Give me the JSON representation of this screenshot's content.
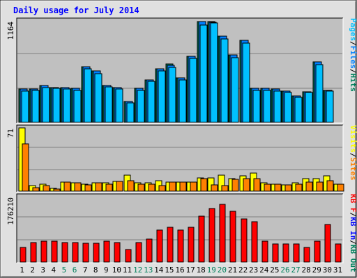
{
  "title": "Daily usage for July 2014",
  "colors": {
    "background": "#e0e0e0",
    "plot_background": "#c0c0c0",
    "grid": "#808080",
    "title": "#0000ff",
    "pages": "#00c0ff",
    "files": "#0080ff",
    "hits": "#00805c",
    "visits": "#ffff00",
    "sites": "#ff8000",
    "kb_f": "#ff0000",
    "kb_in": "#0000ff",
    "kb_out": "#00805c"
  },
  "chart_data": {
    "type": "bar",
    "title": "Daily usage for July 2014",
    "categories": [
      "1",
      "2",
      "3",
      "4",
      "5",
      "6",
      "7",
      "8",
      "9",
      "10",
      "11",
      "12",
      "13",
      "14",
      "15",
      "16",
      "17",
      "18",
      "19",
      "20",
      "21",
      "22",
      "23",
      "24",
      "25",
      "26",
      "27",
      "28",
      "29",
      "30",
      "31"
    ],
    "weekend_days": [
      "5",
      "6",
      "12",
      "13",
      "19",
      "20",
      "26",
      "27"
    ],
    "colors": {
      "weekday_label": "#000000",
      "weekend_label": "#00805c"
    },
    "grid": true,
    "panels": [
      {
        "id": "hits",
        "ymax_label": "1164",
        "ylim": [
          0,
          1164
        ],
        "legend": [
          {
            "label": "Pages",
            "color": "#00c0ff"
          },
          {
            "label": "Files",
            "color": "#0080ff"
          },
          {
            "label": "Hits",
            "color": "#00805c"
          }
        ],
        "series": [
          {
            "name": "Hits",
            "color": "#00805c",
            "values": [
              380,
              380,
              420,
              400,
              400,
              390,
              640,
              590,
              420,
              400,
              240,
              390,
              490,
              610,
              670,
              510,
              760,
              1160,
              1160,
              990,
              770,
              940,
              390,
              390,
              380,
              360,
              300,
              350,
              690,
              370,
              null
            ]
          },
          {
            "name": "Files",
            "color": "#0080ff",
            "values": [
              380,
              380,
              420,
              400,
              400,
              390,
              640,
              590,
              420,
              400,
              240,
              390,
              490,
              610,
              650,
              510,
              760,
              1160,
              1150,
              990,
              770,
              940,
              390,
              390,
              380,
              360,
              300,
              350,
              690,
              370,
              null
            ]
          },
          {
            "name": "Pages",
            "color": "#00c0ff",
            "values": [
              360,
              370,
              400,
              390,
              380,
              370,
              610,
              560,
              410,
              380,
              220,
              370,
              470,
              590,
              630,
              490,
              730,
              1120,
              1140,
              960,
              740,
              910,
              370,
              370,
              360,
              340,
              290,
              340,
              660,
              360,
              null
            ]
          }
        ]
      },
      {
        "id": "visits",
        "ymax_label": "71",
        "ylim": [
          0,
          71
        ],
        "legend": [
          {
            "label": "Visits",
            "color": "#ffff00"
          },
          {
            "label": "Sites",
            "color": "#ff8000"
          }
        ],
        "series": [
          {
            "name": "Visits",
            "color": "#ffff00",
            "values": [
              71,
              6,
              8,
              3,
              10,
              9,
              8,
              9,
              9,
              11,
              18,
              9,
              9,
              12,
              10,
              10,
              10,
              15,
              15,
              18,
              14,
              17,
              20,
              9,
              8,
              7,
              9,
              14,
              14,
              17,
              8
            ]
          },
          {
            "name": "Sites",
            "color": "#ff8000",
            "values": [
              53,
              4,
              6,
              2,
              10,
              9,
              7,
              9,
              8,
              11,
              12,
              8,
              8,
              6,
              10,
              10,
              10,
              14,
              7,
              6,
              13,
              14,
              14,
              8,
              8,
              7,
              8,
              10,
              10,
              12,
              8
            ]
          }
        ]
      },
      {
        "id": "kbytes",
        "ymax_label": "176210",
        "ylim": [
          0,
          176210
        ],
        "legend": [
          {
            "label": "KB F",
            "color": "#ff0000"
          },
          {
            "label": "KB In",
            "color": "#0000ff"
          },
          {
            "label": "KB Out",
            "color": "#00805c"
          }
        ],
        "series": [
          {
            "name": "KB F",
            "color": "#ff0000",
            "values": [
              40000,
              52000,
              56000,
              56000,
              52000,
              52000,
              50000,
              50000,
              56000,
              52000,
              34000,
              52000,
              62000,
              86000,
              94000,
              86000,
              94000,
              124000,
              145000,
              156000,
              136000,
              116000,
              108000,
              56000,
              48000,
              48000,
              48000,
              40000,
              56000,
              102000,
              48000
            ]
          }
        ]
      }
    ]
  }
}
